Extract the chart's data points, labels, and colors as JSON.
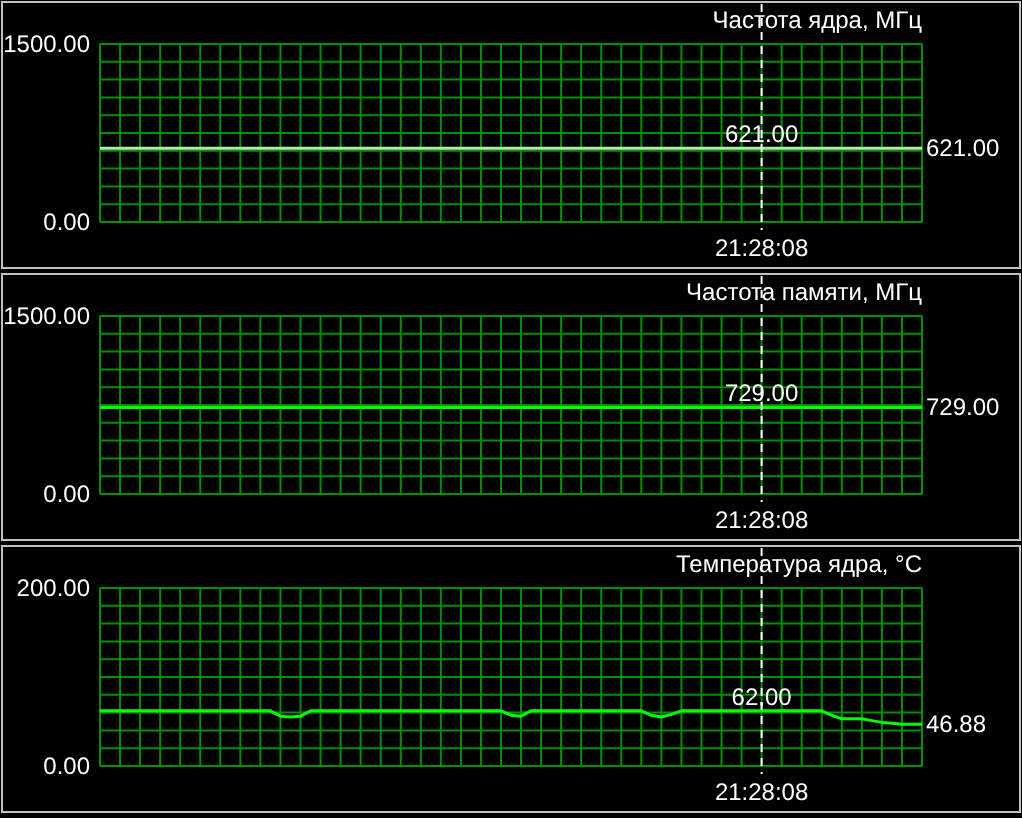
{
  "chart_data": [
    {
      "type": "line",
      "title": "Частота ядра, МГц",
      "categories": [
        null,
        null,
        null,
        null,
        null,
        null,
        null,
        null,
        null,
        null,
        null,
        null,
        null,
        null,
        null,
        null,
        null,
        null,
        null,
        null,
        null,
        null,
        null,
        null,
        null,
        null,
        null,
        null,
        null,
        null,
        null,
        null,
        null,
        null,
        null,
        null,
        null,
        null,
        null,
        null,
        null,
        null,
        null,
        null,
        null,
        null,
        null,
        null,
        null,
        null,
        null,
        null,
        null,
        null,
        null,
        null,
        null,
        null,
        null,
        null,
        null,
        null,
        null,
        null,
        null,
        null,
        "21:28:08",
        null,
        null,
        null,
        null,
        null,
        null,
        null,
        null,
        null,
        null,
        null,
        null,
        null,
        null,
        null,
        null
      ],
      "series": [
        {
          "color": "#b0e8b0",
          "values": [
            621,
            621,
            621,
            621,
            621,
            621,
            621,
            621,
            621,
            621,
            621,
            621,
            621,
            621,
            621,
            621,
            621,
            621,
            621,
            621,
            621,
            621,
            621,
            621,
            621,
            621,
            621,
            621,
            621,
            621,
            621,
            621,
            621,
            621,
            621,
            621,
            621,
            621,
            621,
            621,
            621,
            621,
            621,
            621,
            621,
            621,
            621,
            621,
            621,
            621,
            621,
            621,
            621,
            621,
            621,
            621,
            621,
            621,
            621,
            621,
            621,
            621,
            621,
            621,
            621,
            621,
            621,
            621,
            621,
            621,
            621,
            621,
            621,
            621,
            621,
            621,
            621,
            621,
            621,
            621,
            621,
            621,
            621
          ],
          "value_labels": [
            null,
            null,
            null,
            null,
            null,
            null,
            null,
            null,
            null,
            null,
            null,
            null,
            null,
            null,
            null,
            null,
            null,
            null,
            null,
            null,
            null,
            null,
            null,
            null,
            null,
            null,
            null,
            null,
            null,
            null,
            null,
            null,
            null,
            null,
            null,
            null,
            null,
            null,
            null,
            null,
            null,
            null,
            null,
            null,
            null,
            null,
            null,
            null,
            null,
            null,
            null,
            null,
            null,
            null,
            null,
            null,
            null,
            null,
            null,
            null,
            null,
            null,
            null,
            null,
            null,
            null,
            "621.00",
            null,
            null,
            null,
            null,
            null,
            null,
            null,
            null,
            null,
            null,
            null,
            null,
            null,
            null,
            null,
            "621.00"
          ]
        }
      ],
      "ylim": [
        0,
        1500
      ],
      "yticks": [
        {
          "value": 0,
          "label": "0.00"
        },
        {
          "value": 150,
          "label": null
        },
        {
          "value": 300,
          "label": null
        },
        {
          "value": 450,
          "label": null
        },
        {
          "value": 600,
          "label": null
        },
        {
          "value": 750,
          "label": null
        },
        {
          "value": 900,
          "label": null
        },
        {
          "value": 1050,
          "label": null
        },
        {
          "value": 1200,
          "label": null
        },
        {
          "value": 1350,
          "label": null
        },
        {
          "value": 1500,
          "label": "1500.00"
        }
      ],
      "grid": true
    },
    {
      "type": "line",
      "title": "Частота памяти, МГц",
      "categories": [
        null,
        null,
        null,
        null,
        null,
        null,
        null,
        null,
        null,
        null,
        null,
        null,
        null,
        null,
        null,
        null,
        null,
        null,
        null,
        null,
        null,
        null,
        null,
        null,
        null,
        null,
        null,
        null,
        null,
        null,
        null,
        null,
        null,
        null,
        null,
        null,
        null,
        null,
        null,
        null,
        null,
        null,
        null,
        null,
        null,
        null,
        null,
        null,
        null,
        null,
        null,
        null,
        null,
        null,
        null,
        null,
        null,
        null,
        null,
        null,
        null,
        null,
        null,
        null,
        null,
        null,
        "21:28:08",
        null,
        null,
        null,
        null,
        null,
        null,
        null,
        null,
        null,
        null,
        null,
        null,
        null,
        null,
        null,
        null
      ],
      "series": [
        {
          "color": "#00ff00",
          "values": [
            729,
            729,
            729,
            729,
            729,
            729,
            729,
            729,
            729,
            729,
            729,
            729,
            729,
            729,
            729,
            729,
            729,
            729,
            729,
            729,
            729,
            729,
            729,
            729,
            729,
            729,
            729,
            729,
            729,
            729,
            729,
            729,
            729,
            729,
            729,
            729,
            729,
            729,
            729,
            729,
            729,
            729,
            729,
            729,
            729,
            729,
            729,
            729,
            729,
            729,
            729,
            729,
            729,
            729,
            729,
            729,
            729,
            729,
            729,
            729,
            729,
            729,
            729,
            729,
            729,
            729,
            729,
            729,
            729,
            729,
            729,
            729,
            729,
            729,
            729,
            729,
            729,
            729,
            729,
            729,
            729,
            729,
            729
          ],
          "value_labels": [
            null,
            null,
            null,
            null,
            null,
            null,
            null,
            null,
            null,
            null,
            null,
            null,
            null,
            null,
            null,
            null,
            null,
            null,
            null,
            null,
            null,
            null,
            null,
            null,
            null,
            null,
            null,
            null,
            null,
            null,
            null,
            null,
            null,
            null,
            null,
            null,
            null,
            null,
            null,
            null,
            null,
            null,
            null,
            null,
            null,
            null,
            null,
            null,
            null,
            null,
            null,
            null,
            null,
            null,
            null,
            null,
            null,
            null,
            null,
            null,
            null,
            null,
            null,
            null,
            null,
            null,
            "729.00",
            null,
            null,
            null,
            null,
            null,
            null,
            null,
            null,
            null,
            null,
            null,
            null,
            null,
            null,
            null,
            "729.00"
          ]
        }
      ],
      "ylim": [
        0,
        1500
      ],
      "yticks": [
        {
          "value": 0,
          "label": "0.00"
        },
        {
          "value": 150,
          "label": null
        },
        {
          "value": 300,
          "label": null
        },
        {
          "value": 450,
          "label": null
        },
        {
          "value": 600,
          "label": null
        },
        {
          "value": 750,
          "label": null
        },
        {
          "value": 900,
          "label": null
        },
        {
          "value": 1050,
          "label": null
        },
        {
          "value": 1200,
          "label": null
        },
        {
          "value": 1350,
          "label": null
        },
        {
          "value": 1500,
          "label": "1500.00"
        }
      ],
      "grid": true
    },
    {
      "type": "line",
      "title": "Температура ядра, °C",
      "categories": [
        null,
        null,
        null,
        null,
        null,
        null,
        null,
        null,
        null,
        null,
        null,
        null,
        null,
        null,
        null,
        null,
        null,
        null,
        null,
        null,
        null,
        null,
        null,
        null,
        null,
        null,
        null,
        null,
        null,
        null,
        null,
        null,
        null,
        null,
        null,
        null,
        null,
        null,
        null,
        null,
        null,
        null,
        null,
        null,
        null,
        null,
        null,
        null,
        null,
        null,
        null,
        null,
        null,
        null,
        null,
        null,
        null,
        null,
        null,
        null,
        null,
        null,
        null,
        null,
        null,
        null,
        "21:28:08",
        null,
        null,
        null,
        null,
        null,
        null,
        null,
        null,
        null,
        null,
        null,
        null,
        null,
        null,
        null,
        null
      ],
      "series": [
        {
          "color": "#00ff00",
          "values": [
            62,
            62,
            62,
            62,
            62,
            62,
            62,
            62,
            62,
            62,
            62,
            62,
            62,
            62,
            62,
            62,
            62,
            62,
            56,
            55,
            56,
            62,
            62,
            62,
            62,
            62,
            62,
            62,
            62,
            62,
            62,
            62,
            62,
            62,
            62,
            62,
            62,
            62,
            62,
            62,
            62,
            57,
            56,
            62,
            62,
            62,
            62,
            62,
            62,
            62,
            62,
            62,
            62,
            62,
            62,
            57,
            55,
            58,
            62,
            62,
            62,
            62,
            62,
            62,
            62,
            62,
            62,
            62,
            62,
            62,
            62,
            62,
            62,
            57,
            53,
            53,
            53,
            51,
            49,
            48,
            47,
            47,
            46.88
          ],
          "value_labels": [
            null,
            null,
            null,
            null,
            null,
            null,
            null,
            null,
            null,
            null,
            null,
            null,
            null,
            null,
            null,
            null,
            null,
            null,
            null,
            null,
            null,
            null,
            null,
            null,
            null,
            null,
            null,
            null,
            null,
            null,
            null,
            null,
            null,
            null,
            null,
            null,
            null,
            null,
            null,
            null,
            null,
            null,
            null,
            null,
            null,
            null,
            null,
            null,
            null,
            null,
            null,
            null,
            null,
            null,
            null,
            null,
            null,
            null,
            null,
            null,
            null,
            null,
            null,
            null,
            null,
            null,
            "62.00",
            null,
            null,
            null,
            null,
            null,
            null,
            null,
            null,
            null,
            null,
            null,
            null,
            null,
            null,
            null,
            "46.88"
          ]
        }
      ],
      "ylim": [
        0,
        200
      ],
      "yticks": [
        {
          "value": 0,
          "label": "0.00"
        },
        {
          "value": 20,
          "label": null
        },
        {
          "value": 40,
          "label": null
        },
        {
          "value": 60,
          "label": null
        },
        {
          "value": 80,
          "label": null
        },
        {
          "value": 100,
          "label": null
        },
        {
          "value": 120,
          "label": null
        },
        {
          "value": 140,
          "label": null
        },
        {
          "value": 160,
          "label": null
        },
        {
          "value": 180,
          "label": null
        },
        {
          "value": 200,
          "label": "200.00"
        }
      ],
      "grid": true
    }
  ]
}
